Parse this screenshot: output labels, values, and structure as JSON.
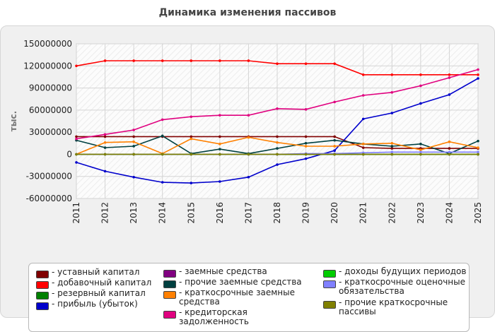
{
  "chart_data": {
    "type": "line",
    "title": "Динамика изменения пассивов",
    "ylabel": "тыс.",
    "xlabel": "",
    "grid": true,
    "legend_position": "bottom",
    "ylim": [
      -60000000,
      150000000
    ],
    "yticks": [
      150000000,
      120000000,
      90000000,
      60000000,
      30000000,
      0,
      -30000000,
      -60000000
    ],
    "x": [
      "2011",
      "2012",
      "2013",
      "2014",
      "2015",
      "2016",
      "2017",
      "2018",
      "2019",
      "2020",
      "2021",
      "2022",
      "2023",
      "2024",
      "2025"
    ],
    "series": [
      {
        "name": "- уставный капитал",
        "color": "#800000",
        "values": [
          24000000,
          24000000,
          24000000,
          24000000,
          24000000,
          24000000,
          24000000,
          24000000,
          24000000,
          24000000,
          9000000,
          8000000,
          8000000,
          8000000,
          8000000
        ]
      },
      {
        "name": "- добавочный капитал",
        "color": "#ff0000",
        "values": [
          120000000,
          127000000,
          127000000,
          127000000,
          127000000,
          127000000,
          127000000,
          123000000,
          123000000,
          123000000,
          108000000,
          108000000,
          108000000,
          108000000,
          108000000
        ]
      },
      {
        "name": "- резервный капитал",
        "color": "#008000",
        "values": [
          0,
          0,
          0,
          0,
          0,
          0,
          0,
          0,
          0,
          0,
          0,
          0,
          0,
          0,
          0
        ]
      },
      {
        "name": "- прибыль (убыток)",
        "color": "#0000cc",
        "values": [
          -11000000,
          -23000000,
          -31000000,
          -38000000,
          -39000000,
          -37000000,
          -31000000,
          -14000000,
          -6000000,
          5000000,
          48000000,
          56000000,
          69000000,
          81000000,
          103000000
        ]
      },
      {
        "name": "- заемные средства",
        "color": "#800080",
        "values": [
          0,
          0,
          0,
          0,
          0,
          0,
          0,
          0,
          0,
          0,
          0,
          0,
          0,
          0,
          0
        ]
      },
      {
        "name": "- прочие заемные средства",
        "color": "#004040",
        "values": [
          19000000,
          9000000,
          11000000,
          25000000,
          1000000,
          7000000,
          1000000,
          8000000,
          15000000,
          19000000,
          14000000,
          11000000,
          14000000,
          1000000,
          18000000
        ]
      },
      {
        "name": "- краткосрочные заемные средства",
        "color": "#ff8000",
        "values": [
          0,
          16000000,
          17000000,
          1000000,
          21000000,
          14000000,
          23000000,
          16000000,
          11000000,
          11000000,
          14000000,
          15000000,
          6000000,
          17000000,
          9000000
        ]
      },
      {
        "name": "- кредиторская задолженность",
        "color": "#e0007f",
        "values": [
          21000000,
          27000000,
          33000000,
          47000000,
          51000000,
          53000000,
          53000000,
          62000000,
          61000000,
          71000000,
          80000000,
          84000000,
          93000000,
          104000000,
          115000000
        ]
      },
      {
        "name": "- доходы будущих периодов",
        "color": "#00cc00",
        "values": [
          0,
          0,
          0,
          0,
          0,
          0,
          0,
          0,
          0,
          0,
          0,
          0,
          0,
          0,
          0
        ]
      },
      {
        "name": "- краткосрочные оценочные обязательства",
        "color": "#8080ff",
        "values": [
          0,
          0,
          0,
          0,
          0,
          0,
          0,
          0,
          1000000,
          1000000,
          2000000,
          3000000,
          3000000,
          3000000,
          3000000
        ]
      },
      {
        "name": "- прочие краткосрочные пассивы",
        "color": "#808000",
        "values": [
          0,
          0,
          0,
          0,
          0,
          0,
          0,
          0,
          0,
          0,
          0,
          0,
          0,
          0,
          0
        ]
      }
    ]
  }
}
